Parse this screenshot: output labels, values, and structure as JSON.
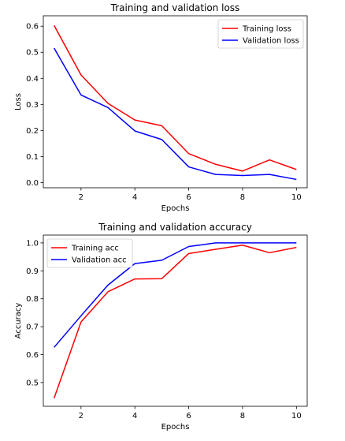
{
  "chart_data": [
    {
      "type": "line",
      "title": "Training and validation loss",
      "xlabel": "Epochs",
      "ylabel": "Loss",
      "x": [
        1,
        2,
        3,
        4,
        5,
        6,
        7,
        8,
        9,
        10
      ],
      "xlim": [
        0.6,
        10.4
      ],
      "ylim": [
        -0.02,
        0.64
      ],
      "xticks": [
        2,
        4,
        6,
        8,
        10
      ],
      "xtick_labels": [
        "2",
        "4",
        "6",
        "8",
        "10"
      ],
      "yticks": [
        0.0,
        0.1,
        0.2,
        0.3,
        0.4,
        0.5,
        0.6
      ],
      "ytick_labels": [
        "0.0",
        "0.1",
        "0.2",
        "0.3",
        "0.4",
        "0.5",
        "0.6"
      ],
      "grid": false,
      "legend_position": "top-right",
      "series": [
        {
          "name": "Training loss",
          "color": "#ff0000",
          "values": [
            0.603,
            0.413,
            0.304,
            0.24,
            0.218,
            0.111,
            0.07,
            0.044,
            0.087,
            0.05
          ]
        },
        {
          "name": "Validation loss",
          "color": "#0000ff",
          "values": [
            0.516,
            0.336,
            0.288,
            0.198,
            0.165,
            0.06,
            0.031,
            0.027,
            0.031,
            0.012
          ]
        }
      ]
    },
    {
      "type": "line",
      "title": "Training and validation accuracy",
      "xlabel": "Epochs",
      "ylabel": "Accuracy",
      "x": [
        1,
        2,
        3,
        4,
        5,
        6,
        7,
        8,
        9,
        10
      ],
      "xlim": [
        0.6,
        10.4
      ],
      "ylim": [
        0.415,
        1.028
      ],
      "xticks": [
        2,
        4,
        6,
        8,
        10
      ],
      "xtick_labels": [
        "2",
        "4",
        "6",
        "8",
        "10"
      ],
      "yticks": [
        0.5,
        0.6,
        0.7,
        0.8,
        0.9,
        1.0
      ],
      "ytick_labels": [
        "0.5",
        "0.6",
        "0.7",
        "0.8",
        "0.9",
        "1.0"
      ],
      "grid": false,
      "legend_position": "top-left",
      "series": [
        {
          "name": "Training acc",
          "color": "#ff0000",
          "values": [
            0.444,
            0.717,
            0.825,
            0.871,
            0.872,
            0.962,
            0.977,
            0.992,
            0.965,
            0.984
          ]
        },
        {
          "name": "Validation acc",
          "color": "#0000ff",
          "values": [
            0.626,
            0.739,
            0.849,
            0.926,
            0.938,
            0.987,
            1.0,
            1.0,
            1.0,
            1.0
          ]
        }
      ]
    }
  ]
}
